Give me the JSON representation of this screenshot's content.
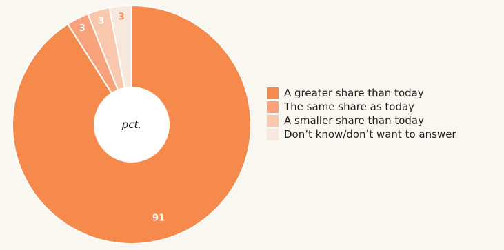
{
  "chart_data": {
    "type": "pie",
    "center_label": "pct.",
    "categories": [
      "A greater share than today",
      "The same share as today",
      "A smaller share than today",
      "Don’t know/don’t want to answer"
    ],
    "values": [
      91,
      3,
      3,
      3
    ],
    "colors": [
      "#f58a4c",
      "#f7a27a",
      "#f9c7ab",
      "#f6e8dc"
    ],
    "label_colors": [
      "#ffffff",
      "#ffffff",
      "#ffffff",
      "#f58a4c"
    ],
    "legend_position": "right"
  }
}
